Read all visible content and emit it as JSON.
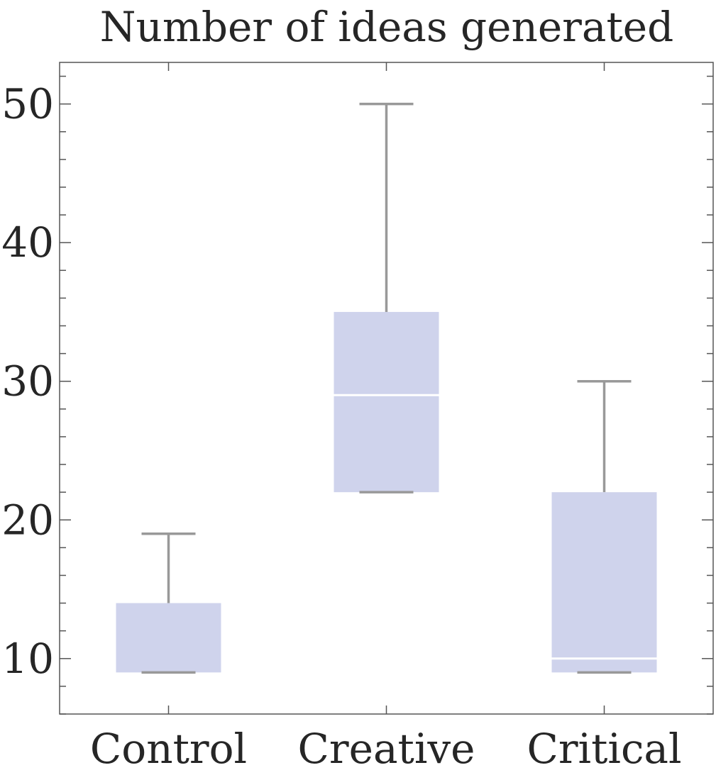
{
  "chart_data": {
    "type": "box",
    "title": "Number of ideas generated",
    "xlabel": "",
    "ylabel": "",
    "ylim": [
      6,
      53
    ],
    "y_ticks": [
      10,
      20,
      30,
      40,
      50
    ],
    "y_minor_step": 2,
    "grid": false,
    "categories": [
      "Control",
      "Creative",
      "Critical"
    ],
    "boxes": [
      {
        "category": "Control",
        "min": 9,
        "q1": 9,
        "median": 9,
        "q3": 14,
        "max": 19
      },
      {
        "category": "Creative",
        "min": 22,
        "q1": 22,
        "median": 29,
        "q3": 35,
        "max": 50
      },
      {
        "category": "Critical",
        "min": 9,
        "q1": 9,
        "median": 10,
        "q3": 22,
        "max": 30
      }
    ],
    "colors": {
      "box_fill": "#cfd3ec",
      "whisker": "#999999",
      "median": "#ffffff",
      "frame": "#555555",
      "text": "#262626"
    }
  }
}
